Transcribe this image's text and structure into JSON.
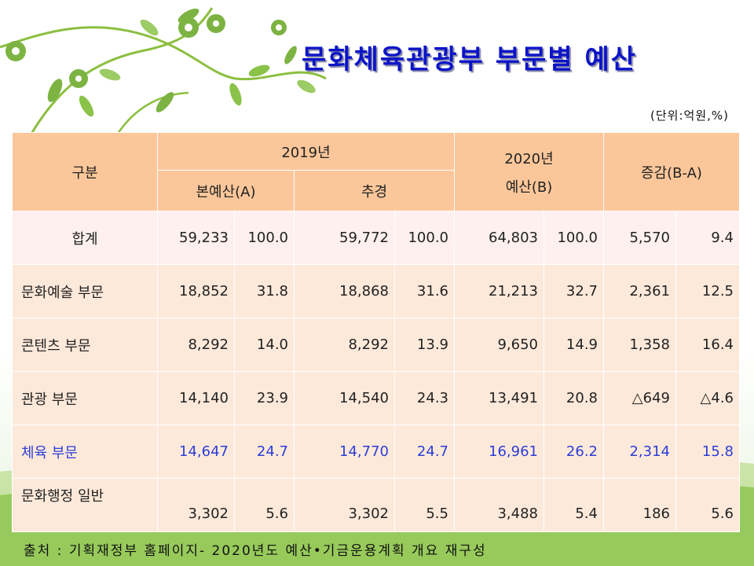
{
  "slide": {
    "title": "문화체육관광부 부문별 예산",
    "unit": "(단위:억원,%)",
    "source": "출처 : 기획재정부 홈페이지- 2020년도 예산•기금운용계획 개요 재구성",
    "colors": {
      "title": "#0b14c8",
      "header_bg": "#fbc79a",
      "row_bg": "#fde9da",
      "highlight_text": "#2c3dd8"
    }
  },
  "table": {
    "headers": {
      "category": "구분",
      "y2019": "2019년",
      "y2019_main": "본예산(A)",
      "y2019_supp": "추경",
      "y2020_year": "2020년",
      "y2020_budget": "예산(B)",
      "change": "증감(B-A)"
    },
    "rows": [
      {
        "label": "합계",
        "cells": [
          "59,233",
          "100.0",
          "59,772",
          "100.0",
          "64,803",
          "100.0",
          "5,570",
          "9.4"
        ]
      },
      {
        "label": "문화예술 부문",
        "cells": [
          "18,852",
          "31.8",
          "18,868",
          "31.6",
          "21,213",
          "32.7",
          "2,361",
          "12.5"
        ]
      },
      {
        "label": "콘텐츠 부문",
        "cells": [
          "8,292",
          "14.0",
          "8,292",
          "13.9",
          "9,650",
          "14.9",
          "1,358",
          "16.4"
        ]
      },
      {
        "label": "관광 부문",
        "cells": [
          "14,140",
          "23.9",
          "14,540",
          "24.3",
          "13,491",
          "20.8",
          "△649",
          "△4.6"
        ]
      },
      {
        "label": "체육 부문",
        "cells": [
          "14,647",
          "24.7",
          "14,770",
          "24.7",
          "16,961",
          "26.2",
          "2,314",
          "15.8"
        ]
      },
      {
        "label": "문화행정 일반",
        "cells": [
          "3,302",
          "5.6",
          "3,302",
          "5.5",
          "3,488",
          "5.4",
          "186",
          "5.6"
        ]
      }
    ]
  }
}
